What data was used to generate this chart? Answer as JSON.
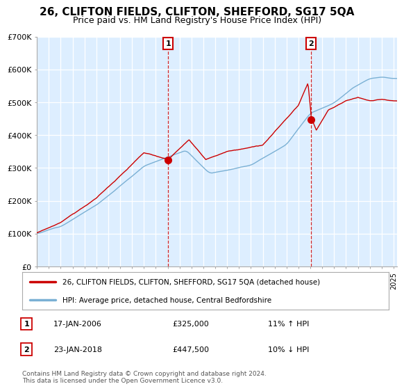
{
  "title": "26, CLIFTON FIELDS, CLIFTON, SHEFFORD, SG17 5QA",
  "subtitle": "Price paid vs. HM Land Registry's House Price Index (HPI)",
  "ylim": [
    0,
    700000
  ],
  "yticks": [
    0,
    100000,
    200000,
    300000,
    400000,
    500000,
    600000,
    700000
  ],
  "ytick_labels": [
    "£0",
    "£100K",
    "£200K",
    "£300K",
    "£400K",
    "£500K",
    "£600K",
    "£700K"
  ],
  "xlim_start": 1995.0,
  "xlim_end": 2025.3,
  "sale1_date": 2006.04,
  "sale1_price": 325000,
  "sale1_label": "17-JAN-2006",
  "sale1_amount": "£325,000",
  "sale1_hpi": "11% ↑ HPI",
  "sale2_date": 2018.06,
  "sale2_price": 447500,
  "sale2_label": "23-JAN-2018",
  "sale2_amount": "£447,500",
  "sale2_hpi": "10% ↓ HPI",
  "legend_line1": "26, CLIFTON FIELDS, CLIFTON, SHEFFORD, SG17 5QA (detached house)",
  "legend_line2": "HPI: Average price, detached house, Central Bedfordshire",
  "footer": "Contains HM Land Registry data © Crown copyright and database right 2024.\nThis data is licensed under the Open Government Licence v3.0.",
  "red_color": "#cc0000",
  "blue_color": "#7ab0d4",
  "plot_bg_color": "#ddeeff",
  "bg_color": "#ffffff",
  "grid_color": "#ffffff",
  "title_fontsize": 11,
  "subtitle_fontsize": 9,
  "axis_fontsize": 8
}
